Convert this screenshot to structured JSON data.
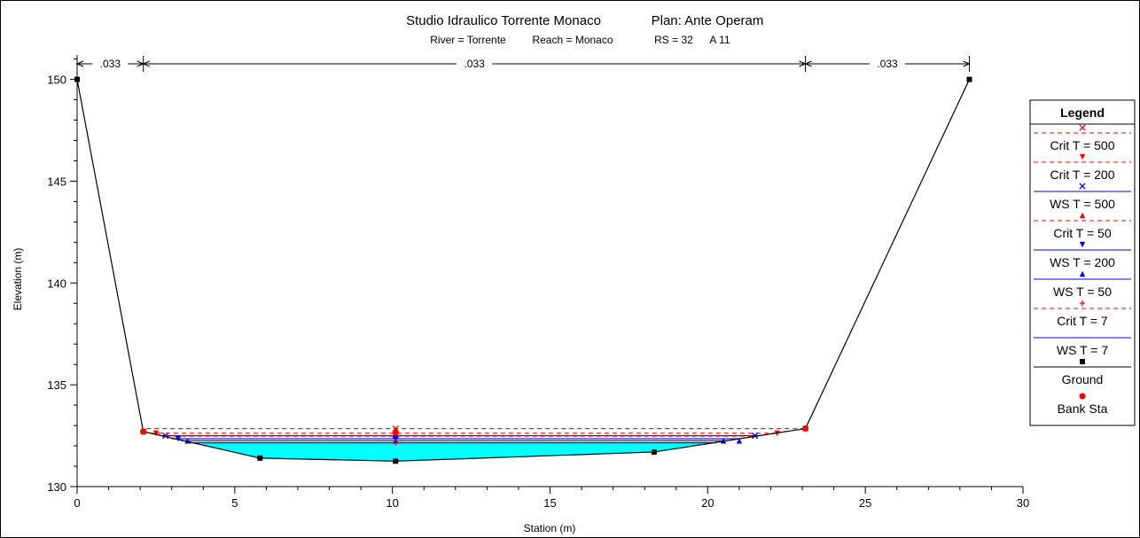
{
  "chart_data": {
    "type": "line",
    "title": "Studio Idraulico Torrente Monaco",
    "plan": "Plan: Ante Operam",
    "subtitle": {
      "river": "River = Torrente",
      "reach": "Reach = Monaco",
      "rs": "RS = 32",
      "section": "A 11"
    },
    "xlabel": "Station (m)",
    "ylabel": "Elevation (m)",
    "xlim": [
      0,
      30
    ],
    "ylim": [
      130,
      151.2
    ],
    "xticks": [
      0,
      5,
      10,
      15,
      20,
      25,
      30
    ],
    "yticks": [
      130,
      135,
      140,
      145,
      150
    ],
    "manning": [
      {
        "label": ".033",
        "x0": 0,
        "x1": 2.1
      },
      {
        "label": ".033",
        "x0": 2.1,
        "x1": 23.1
      },
      {
        "label": ".033",
        "x0": 23.1,
        "x1": 28.3
      }
    ],
    "ground": {
      "name": "Ground",
      "x": [
        0,
        2.1,
        5.8,
        10.1,
        18.3,
        23.1,
        28.3
      ],
      "y": [
        150.0,
        132.7,
        131.4,
        131.25,
        131.7,
        132.85,
        150.0
      ]
    },
    "bank_sta": {
      "name": "Bank Sta",
      "x": [
        2.1,
        10.1,
        23.1
      ],
      "y": [
        132.7,
        132.65,
        132.85
      ]
    },
    "water_fill": {
      "elevation": 132.15,
      "color": "#00ffff"
    },
    "series": [
      {
        "name": "Crit  T = 500",
        "elevation": 132.85,
        "x0": 2.2,
        "x1": 23.1,
        "style": "dashed",
        "color": "#ff0000",
        "marker": "x",
        "marker_x": [
          10.1
        ]
      },
      {
        "name": "Crit  T = 200",
        "elevation": 132.62,
        "x0": 2.3,
        "x1": 22.3,
        "style": "dashed",
        "color": "#ff0000",
        "marker": "tri-down",
        "marker_x": [
          2.5,
          22.2
        ]
      },
      {
        "name": "WS  T = 500",
        "elevation": 132.5,
        "x0": 2.7,
        "x1": 21.6,
        "style": "solid",
        "color": "#0000ff",
        "marker": "x",
        "marker_x": [
          2.8,
          10.1,
          21.5
        ]
      },
      {
        "name": "Crit  T = 50",
        "elevation": 132.48,
        "x0": 2.8,
        "x1": 21.5,
        "style": "dashed",
        "color": "#ff0000",
        "marker": "tri-up",
        "marker_x": [
          10.1
        ]
      },
      {
        "name": "WS  T = 200",
        "elevation": 132.35,
        "x0": 3.0,
        "x1": 21.0,
        "style": "solid",
        "color": "#0000ff",
        "marker": "tri-down",
        "marker_x": [
          3.2,
          10.1
        ]
      },
      {
        "name": "WS  T = 50",
        "elevation": 132.25,
        "x0": 3.3,
        "x1": 20.6,
        "style": "solid",
        "color": "#0000ff",
        "marker": "tri-up",
        "marker_x": [
          3.5,
          10.1,
          20.5,
          21.0
        ]
      },
      {
        "name": "Crit  T = 7",
        "elevation": 132.15,
        "x0": 3.5,
        "x1": 20.3,
        "style": "dashed",
        "color": "#ff0000",
        "marker": "plus",
        "marker_x": [
          10.1
        ]
      },
      {
        "name": "WS  T = 7",
        "elevation": 132.15,
        "x0": 3.5,
        "x1": 20.3,
        "style": "solid",
        "color": "#0000ff",
        "marker": "none",
        "marker_x": []
      }
    ],
    "legend": {
      "title": "Legend",
      "placement": "right",
      "entries": [
        {
          "label": "Crit  T = 500",
          "line": "dashed",
          "color": "#ff0000",
          "marker": "x"
        },
        {
          "label": "Crit  T = 200",
          "line": "dashed",
          "color": "#ff0000",
          "marker": "tri-down"
        },
        {
          "label": "WS  T = 500",
          "line": "solid",
          "color": "#0000ff",
          "marker": "x"
        },
        {
          "label": "Crit  T = 50",
          "line": "dashed",
          "color": "#ff0000",
          "marker": "tri-up"
        },
        {
          "label": "WS  T = 200",
          "line": "solid",
          "color": "#0000ff",
          "marker": "tri-down"
        },
        {
          "label": "WS  T = 50",
          "line": "solid",
          "color": "#0000ff",
          "marker": "tri-up"
        },
        {
          "label": "Crit  T = 7",
          "line": "dashed",
          "color": "#ff0000",
          "marker": "plus"
        },
        {
          "label": "WS  T = 7",
          "line": "solid",
          "color": "#0000ff",
          "marker": "none"
        },
        {
          "label": "Ground",
          "line": "solid",
          "color": "#000000",
          "marker": "square"
        },
        {
          "label": "Bank Sta",
          "line": "none",
          "color": "#ff0000",
          "marker": "circle"
        }
      ]
    }
  }
}
